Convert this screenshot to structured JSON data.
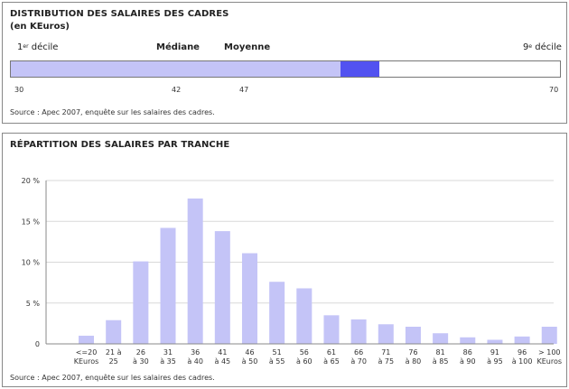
{
  "distribution": {
    "title": "DISTRIBUTION DES SALAIRES DES CADRES",
    "subtitle": "(en KEuros)",
    "labels": {
      "d1_main": "1",
      "d1_sup": "er",
      "d1_rest": " décile",
      "median": "Médiane",
      "mean": "Moyenne",
      "d9_main": "9",
      "d9_sup": "e",
      "d9_rest": " décile"
    },
    "values": {
      "d1": 30,
      "median": 42,
      "mean": 47,
      "d9": 70
    },
    "colors": {
      "light": "#c4c4f7",
      "dark": "#5252f0"
    },
    "source": "Source : Apec 2007, enquête sur les salaires des cadres."
  },
  "repartition": {
    "title": "RÉPARTITION DES SALAIRES PAR TRANCHE",
    "source": "Source : Apec 2007, enquête sur les salaires des cadres."
  },
  "chart_data": {
    "type": "bar",
    "title": "RÉPARTITION DES SALAIRES PAR TRANCHE",
    "xlabel": "",
    "ylabel": "",
    "ylim": [
      0,
      20
    ],
    "yticks": [
      "0",
      "5 %",
      "10 %",
      "15 %",
      "20 %"
    ],
    "grid": true,
    "bar_color": "#c4c4f7",
    "categories": [
      [
        "<=20",
        "KEuros"
      ],
      [
        "21 à",
        "25"
      ],
      [
        "26",
        "à 30"
      ],
      [
        "31",
        "à 35"
      ],
      [
        "36",
        "à 40"
      ],
      [
        "41",
        "à 45"
      ],
      [
        "46",
        "à 50"
      ],
      [
        "51",
        "à 55"
      ],
      [
        "56",
        "à 60"
      ],
      [
        "61",
        "à 65"
      ],
      [
        "66",
        "à 70"
      ],
      [
        "71",
        "à 75"
      ],
      [
        "76",
        "à 80"
      ],
      [
        "81",
        "à 85"
      ],
      [
        "86",
        "à 90"
      ],
      [
        "91",
        "à 95"
      ],
      [
        "96",
        "à 100"
      ],
      [
        "> 100",
        "KEuros"
      ]
    ],
    "values": [
      1.0,
      2.9,
      10.1,
      14.2,
      17.8,
      13.8,
      11.1,
      7.6,
      6.8,
      3.5,
      3.0,
      2.4,
      2.1,
      1.3,
      0.8,
      0.5,
      0.9,
      2.1
    ]
  }
}
